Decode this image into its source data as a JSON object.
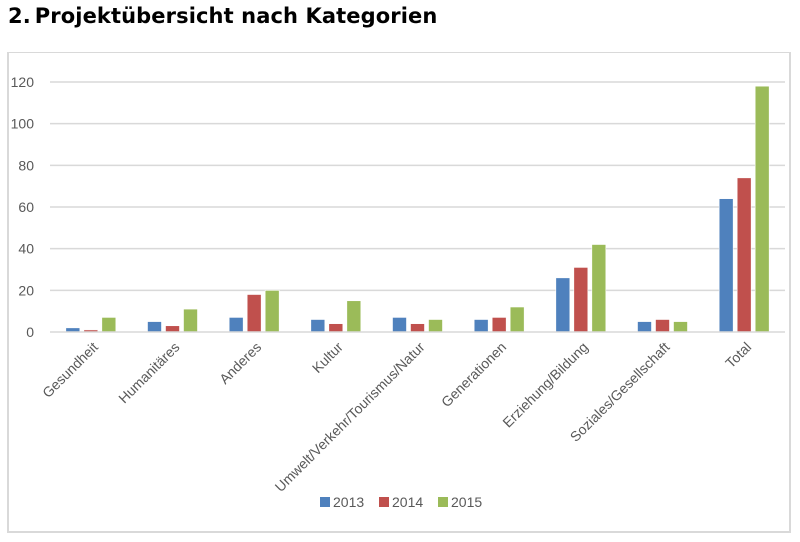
{
  "heading": {
    "number": "2.",
    "title": "Projektübersicht nach Kategorien"
  },
  "chart_data": {
    "type": "bar",
    "title": "",
    "xlabel": "",
    "ylabel": "",
    "ylim": [
      0,
      120
    ],
    "yticks": [
      0,
      20,
      40,
      60,
      80,
      100,
      120
    ],
    "grid": true,
    "legend_position": "bottom",
    "categories": [
      "Gesundheit",
      "Humanitäres",
      "Anderes",
      "Kultur",
      "Umwelt/Verkehr/Tourismus/Natur",
      "Generationen",
      "Erziehung/Bildung",
      "Soziales/Gesellschaft",
      "Total"
    ],
    "series": [
      {
        "name": "2013",
        "color": "#4F81BD",
        "values": [
          2,
          5,
          7,
          6,
          7,
          6,
          26,
          5,
          64
        ]
      },
      {
        "name": "2014",
        "color": "#C0504D",
        "values": [
          1,
          3,
          18,
          4,
          4,
          7,
          31,
          6,
          74
        ]
      },
      {
        "name": "2015",
        "color": "#9BBB59",
        "values": [
          7,
          11,
          20,
          15,
          6,
          12,
          42,
          5,
          118
        ]
      }
    ]
  }
}
